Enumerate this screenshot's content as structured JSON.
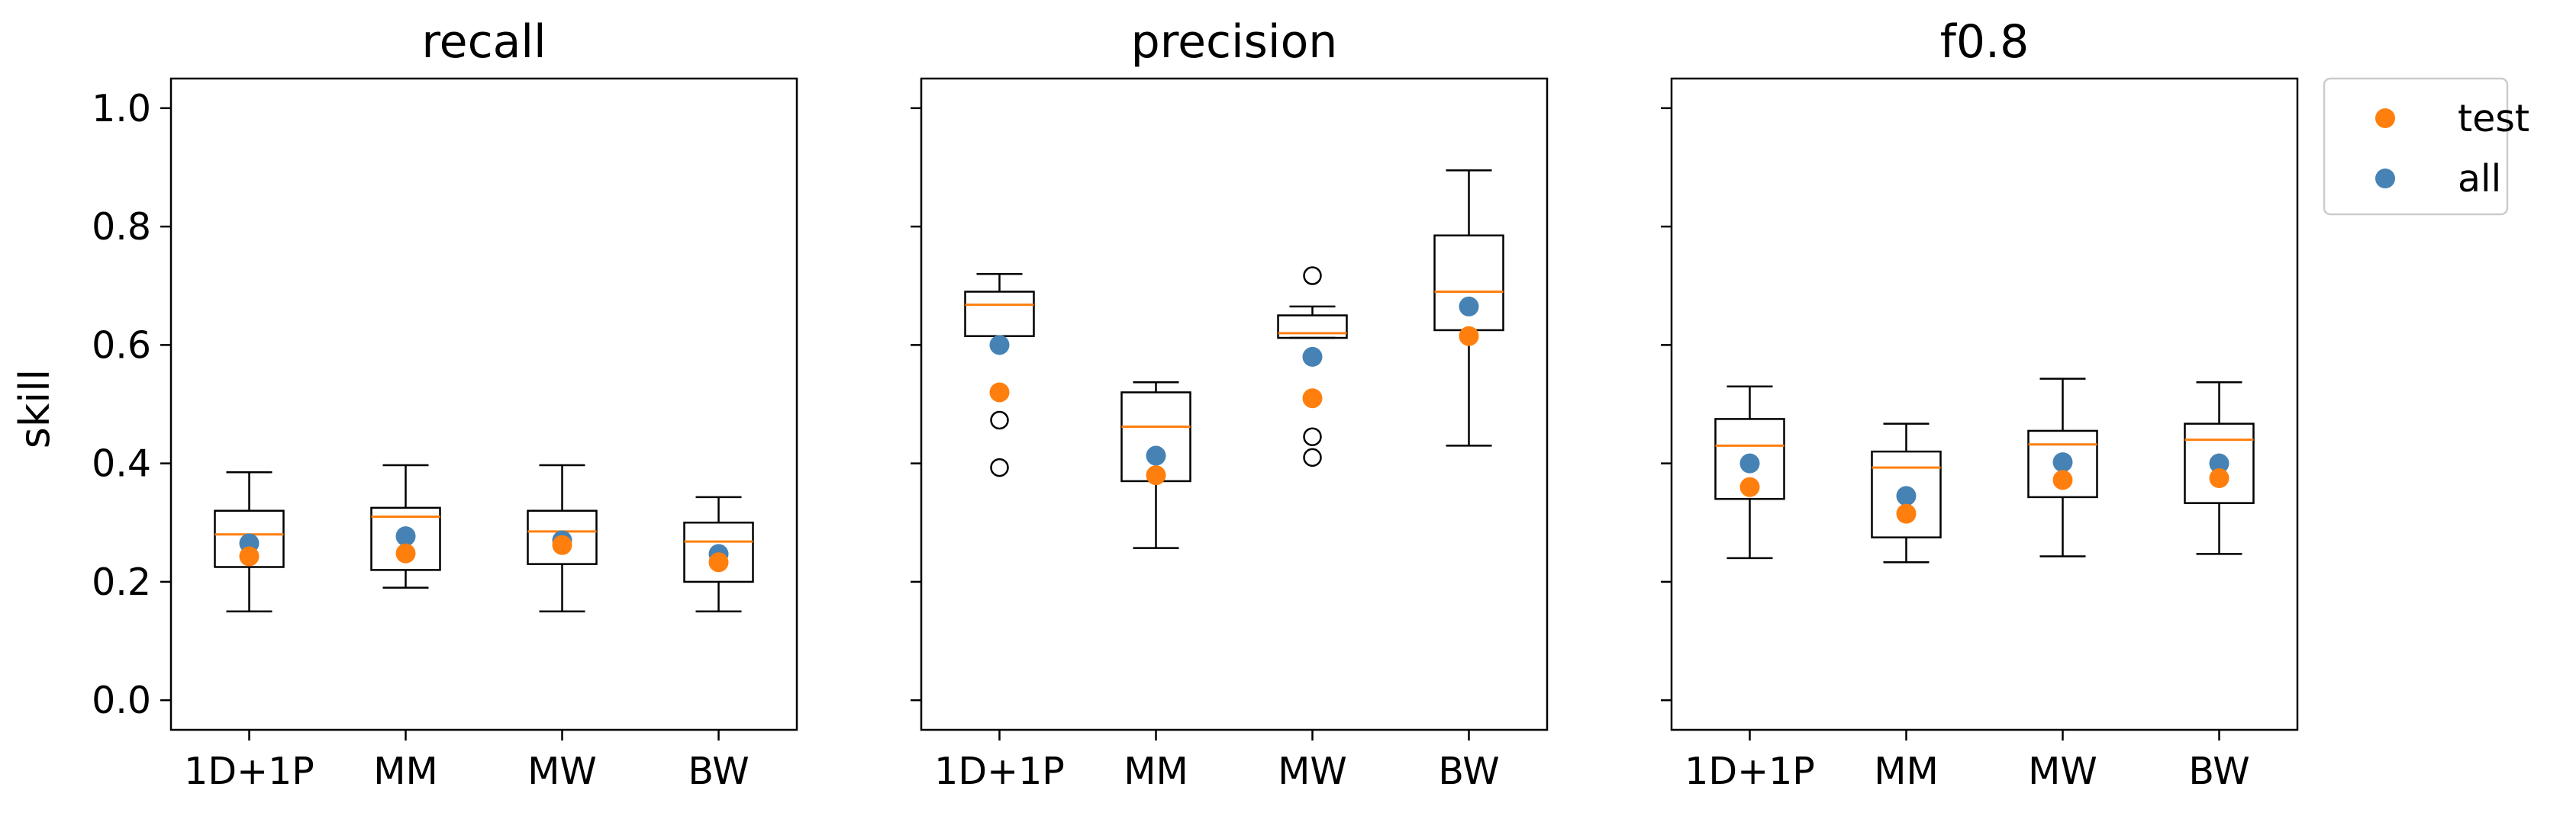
{
  "chart_data": {
    "type": "box",
    "ylabel": "skill",
    "ylim": [
      -0.05,
      1.05
    ],
    "yticks": [
      "0.0",
      "0.2",
      "0.4",
      "0.6",
      "0.8",
      "1.0"
    ],
    "categories": [
      "1D+1P",
      "MM",
      "MW",
      "BW"
    ],
    "legend": {
      "placement": "outside-right-top",
      "entries": [
        {
          "label": "test",
          "color": "#ff7f0e"
        },
        {
          "label": "all",
          "color": "#4682b4"
        }
      ]
    },
    "colors": {
      "median": "#ff7f0e",
      "test": "#ff7f0e",
      "all": "#4682b4",
      "box": "#000000"
    },
    "panels": [
      {
        "title": "recall",
        "boxes": [
          {
            "category": "1D+1P",
            "whislo": 0.15,
            "q1": 0.225,
            "med": 0.28,
            "q3": 0.32,
            "whishi": 0.385,
            "fliers": [],
            "test": 0.243,
            "all": 0.265
          },
          {
            "category": "MM",
            "whislo": 0.19,
            "q1": 0.22,
            "med": 0.31,
            "q3": 0.325,
            "whishi": 0.397,
            "fliers": [],
            "test": 0.248,
            "all": 0.277
          },
          {
            "category": "MW",
            "whislo": 0.15,
            "q1": 0.23,
            "med": 0.285,
            "q3": 0.32,
            "whishi": 0.397,
            "fliers": [],
            "test": 0.262,
            "all": 0.27
          },
          {
            "category": "BW",
            "whislo": 0.15,
            "q1": 0.2,
            "med": 0.268,
            "q3": 0.3,
            "whishi": 0.343,
            "fliers": [],
            "test": 0.233,
            "all": 0.247
          }
        ]
      },
      {
        "title": "precision",
        "boxes": [
          {
            "category": "1D+1P",
            "whislo": 0.615,
            "q1": 0.615,
            "med": 0.668,
            "q3": 0.69,
            "whishi": 0.72,
            "fliers": [
              0.393,
              0.473
            ],
            "test": 0.52,
            "all": 0.6
          },
          {
            "category": "MM",
            "whislo": 0.257,
            "q1": 0.37,
            "med": 0.462,
            "q3": 0.52,
            "whishi": 0.537,
            "fliers": [],
            "test": 0.38,
            "all": 0.413
          },
          {
            "category": "MW",
            "whislo": 0.612,
            "q1": 0.612,
            "med": 0.62,
            "q3": 0.65,
            "whishi": 0.665,
            "fliers": [
              0.41,
              0.445,
              0.717
            ],
            "test": 0.51,
            "all": 0.58
          },
          {
            "category": "BW",
            "whislo": 0.43,
            "q1": 0.625,
            "med": 0.69,
            "q3": 0.785,
            "whishi": 0.895,
            "fliers": [],
            "test": 0.615,
            "all": 0.665
          }
        ]
      },
      {
        "title": "f0.8",
        "boxes": [
          {
            "category": "1D+1P",
            "whislo": 0.24,
            "q1": 0.34,
            "med": 0.43,
            "q3": 0.475,
            "whishi": 0.53,
            "fliers": [],
            "test": 0.36,
            "all": 0.4
          },
          {
            "category": "MM",
            "whislo": 0.233,
            "q1": 0.275,
            "med": 0.393,
            "q3": 0.42,
            "whishi": 0.467,
            "fliers": [],
            "test": 0.315,
            "all": 0.345
          },
          {
            "category": "MW",
            "whislo": 0.243,
            "q1": 0.343,
            "med": 0.432,
            "q3": 0.455,
            "whishi": 0.543,
            "fliers": [],
            "test": 0.372,
            "all": 0.402
          },
          {
            "category": "BW",
            "whislo": 0.247,
            "q1": 0.333,
            "med": 0.44,
            "q3": 0.467,
            "whishi": 0.537,
            "fliers": [],
            "test": 0.375,
            "all": 0.4
          }
        ]
      }
    ]
  }
}
